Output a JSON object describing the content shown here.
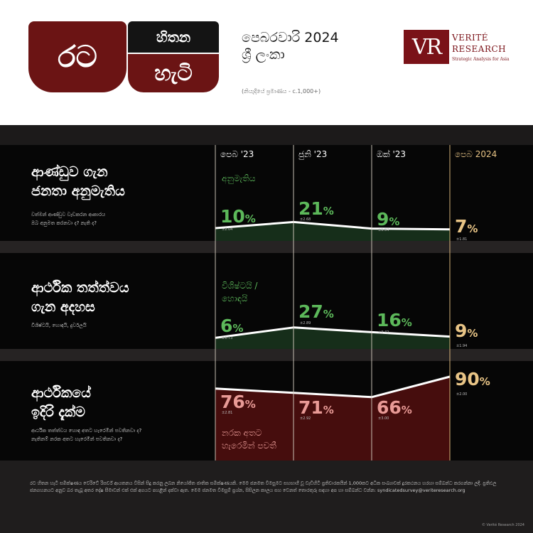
{
  "header": {
    "logo_ra": "රට",
    "logo_hitana": "හිතන",
    "logo_hati": "හැටි",
    "period": "පෙබරවාරි 2024",
    "country": "ශ්‍රී ලංකා",
    "sample": "(නියැදියේ ප්‍රමාණය - c.1,000+)"
  },
  "publisher": {
    "mark": "VR",
    "name_line1": "VERITÉ",
    "name_line2": "RESEARCH",
    "tagline": "Strategic Analysis for Asia"
  },
  "colors": {
    "brand_red": "#6b1414",
    "approval_green": "#5cb85a",
    "outlook_red": "#e89a96",
    "latest_gold": "#e8c486",
    "approval_fill": "#17301b",
    "outlook_fill": "#4a0e0e"
  },
  "columns": [
    "පෙබ '23",
    "ජුනි '23",
    "ඔක් '23",
    "පෙබ 2024"
  ],
  "sections": [
    {
      "title_line1": "ආණ්ඩුව ගැන",
      "title_line2": "ජනතා අනුමැතිය",
      "sub_line1": "වත්මන් ආණ්ඩුව වැඩකරන ආකාරය",
      "sub_line2": "ඔබ අනුමත කරනවා ද? නැති ද?",
      "series_label_line1": "අනුමැතිය",
      "values": [
        "10",
        "21",
        "9",
        "7"
      ],
      "margins": [
        "±2.04",
        "±2.68",
        "±1.94",
        "±1.81"
      ]
    },
    {
      "title_line1": "ආර්ථික තත්ත්වය",
      "title_line2": "ගැන අදහස",
      "sub_line1": "විශිෂ්ටයි, හොඳයි, දුර්වලයි",
      "series_label_line1": "විශිෂ්ටයි /",
      "series_label_line2": "හොඳයි",
      "values": [
        "6",
        "27",
        "16",
        "9"
      ],
      "margins": [
        "±1.73",
        "±2.89",
        "±2.42",
        "±1.94"
      ]
    },
    {
      "title_line1": "ආර්ථිකයේ",
      "title_line2": "ඉදිරි දැක්ම",
      "sub_line1": "ආර්ථික තත්ත්වය හොඳ අතට හැරෙමින් පවතිනවා ද?",
      "sub_line2": "නැතිනම් නරක අතට හැරෙමින් පවතිනවා ද?",
      "series_label_line1": "නරක අතට",
      "series_label_line2": "හැරෙමින් පවතී",
      "values": [
        "76",
        "71",
        "66",
        "90"
      ],
      "margins": [
        "±2.81",
        "±2.92",
        "±3.00",
        "±2.00"
      ]
    }
  ],
  "pct_symbol": "%",
  "chart_data": [
    {
      "type": "area",
      "categories": [
        "පෙබ '23",
        "ජුනි '23",
        "ඔක් '23",
        "පෙබ 2024"
      ],
      "series": [
        {
          "name": "අනුමැතිය",
          "values": [
            10,
            21,
            9,
            7
          ]
        }
      ],
      "margins_of_error": [
        2.04,
        2.68,
        1.94,
        1.81
      ],
      "unit": "%"
    },
    {
      "type": "area",
      "categories": [
        "පෙබ '23",
        "ජුනි '23",
        "ඔක් '23",
        "පෙබ 2024"
      ],
      "series": [
        {
          "name": "විශිෂ්ටයි / හොඳයි",
          "values": [
            6,
            27,
            16,
            9
          ]
        }
      ],
      "margins_of_error": [
        1.73,
        2.89,
        2.42,
        1.94
      ],
      "unit": "%"
    },
    {
      "type": "area",
      "categories": [
        "පෙබ '23",
        "ජුනි '23",
        "ඔක් '23",
        "පෙබ 2024"
      ],
      "series": [
        {
          "name": "නරක අතට හැරෙමින් පවතී",
          "values": [
            76,
            71,
            66,
            90
          ]
        }
      ],
      "margins_of_error": [
        2.81,
        2.92,
        3.0,
        2.0
      ],
      "unit": "%"
    }
  ],
  "footer": {
    "text": "රට හිතන හැටි සමීක්ෂණය වෙරිටේ රිසර්ච් ආයතනය විසින් සිදු කරනු ලබන නියෝජිත ජාතික සමීක්ෂණයකි. මෙම ජනමත විමසුමට සහභාගී වූ වැඩිහිටි ප්‍රතිචාරකයින් 1,000කට අධික සංඛ්‍යාවක් දුරකථනය හරහා සම්බන්ධ කරගන්නා ලදී. ප්‍රතිඵල ජනගහනයට අනුව බර තැබූ අතර දෝෂ සීමාවන් එක් එක් අගයට පහළින් දක්වා ඇත. මෙම ජනමත විමසුම් ප්‍රශ්න, සිසිලන කාලය සහ වෙනත් තොරතුරු සඳහා අප හා සම්බන්ධ වන්න: syndicatedsurvey@veriteresearch.org",
    "copyright": "© Verité Research 2024"
  }
}
